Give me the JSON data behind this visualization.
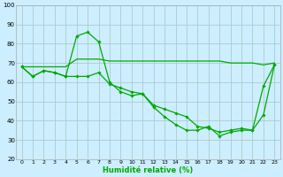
{
  "xlabel": "Humidité relative (%)",
  "background_color": "#cceeff",
  "grid_color": "#aacccc",
  "line_color": "#00aa00",
  "xlim": [
    -0.5,
    23.5
  ],
  "ylim": [
    20,
    100
  ],
  "yticks": [
    20,
    30,
    40,
    50,
    60,
    70,
    80,
    90,
    100
  ],
  "xticks": [
    0,
    1,
    2,
    3,
    4,
    5,
    6,
    7,
    8,
    9,
    10,
    11,
    12,
    13,
    14,
    15,
    16,
    17,
    18,
    19,
    20,
    21,
    22,
    23
  ],
  "line1_x": [
    0,
    1,
    2,
    3,
    4,
    5,
    6,
    7,
    8,
    9,
    10,
    11,
    12,
    13,
    14,
    15,
    16,
    17,
    18,
    19,
    20,
    21,
    22,
    23
  ],
  "line1_y": [
    68,
    63,
    66,
    65,
    63,
    84,
    86,
    81,
    60,
    55,
    53,
    54,
    47,
    42,
    38,
    35,
    35,
    37,
    32,
    34,
    35,
    35,
    43,
    69
  ],
  "line2_x": [
    0,
    1,
    2,
    3,
    4,
    5,
    6,
    7,
    8,
    9,
    10,
    11,
    12,
    13,
    14,
    15,
    16,
    17,
    18,
    19,
    20,
    21,
    22,
    23
  ],
  "line2_y": [
    68,
    63,
    66,
    65,
    63,
    63,
    63,
    65,
    59,
    57,
    55,
    54,
    48,
    46,
    44,
    42,
    37,
    36,
    34,
    35,
    36,
    35,
    58,
    69
  ],
  "line3_x": [
    0,
    1,
    2,
    3,
    4,
    5,
    6,
    7,
    8,
    9,
    10,
    11,
    12,
    13,
    14,
    15,
    16,
    17,
    18,
    19,
    20,
    21,
    22,
    23
  ],
  "line3_y": [
    68,
    68,
    68,
    68,
    68,
    72,
    72,
    72,
    71,
    71,
    71,
    71,
    71,
    71,
    71,
    71,
    71,
    71,
    71,
    70,
    70,
    70,
    69,
    70
  ]
}
